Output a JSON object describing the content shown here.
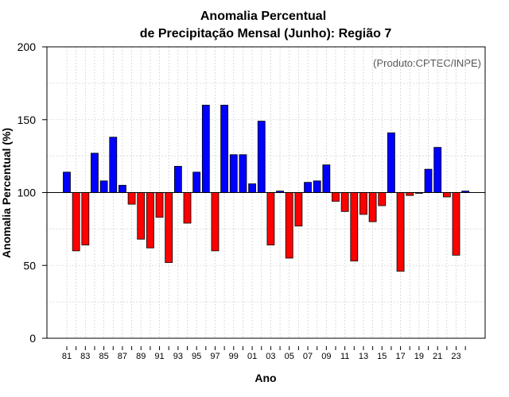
{
  "chart_data": {
    "type": "bar",
    "title_line1": "Anomalia Percentual",
    "title_line2": "de Precipitação Mensal (Junho): Região 7",
    "xlabel": "Ano",
    "ylabel": "Anomalia Percentual (%)",
    "annotation": "(Produto:CPTEC/INPE)",
    "baseline": 100,
    "ylim": [
      0,
      200
    ],
    "yticks": [
      0,
      50,
      100,
      150,
      200
    ],
    "grid": true,
    "colors": {
      "above": "#0000ff",
      "below": "#ff0000",
      "border": "#000000",
      "grid": "#d3d3d3"
    },
    "categories": [
      "1981",
      "1982",
      "1983",
      "1984",
      "1985",
      "1986",
      "1987",
      "1988",
      "1989",
      "1990",
      "1991",
      "1992",
      "1993",
      "1994",
      "1995",
      "1996",
      "1997",
      "1998",
      "1999",
      "2000",
      "2001",
      "2002",
      "2003",
      "2004",
      "2005",
      "2006",
      "2007",
      "2008",
      "2009",
      "2010",
      "2011",
      "2012",
      "2013",
      "2014",
      "2015",
      "2016",
      "2017",
      "2018",
      "2019",
      "2020",
      "2021",
      "2022",
      "2023",
      "2024"
    ],
    "tick_labels": [
      "81",
      "83",
      "85",
      "87",
      "89",
      "91",
      "93",
      "95",
      "97",
      "99",
      "01",
      "03",
      "05",
      "07",
      "09",
      "11",
      "13",
      "15",
      "17",
      "19",
      "21",
      "23"
    ],
    "values": [
      114,
      60,
      64,
      127,
      108,
      138,
      105,
      92,
      68,
      62,
      83,
      52,
      118,
      79,
      114,
      160,
      60,
      160,
      126,
      126,
      106,
      149,
      64,
      101,
      55,
      77,
      107,
      108,
      119,
      94,
      87,
      53,
      85,
      80,
      91,
      141,
      46,
      98,
      100,
      116,
      131,
      97,
      57,
      101
    ]
  }
}
